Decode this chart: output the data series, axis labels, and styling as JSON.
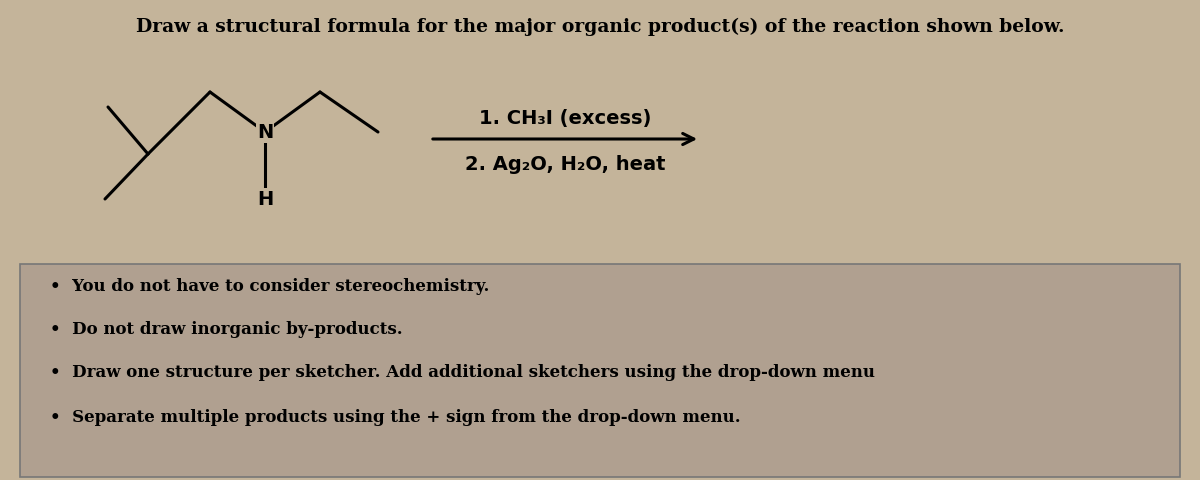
{
  "bg_color": "#c4b49a",
  "title": "Draw a structural formula for the major organic product(s) of the reaction shown below.",
  "title_fontsize": 13.5,
  "reagent_line1": "1. CH₃I (excess)",
  "reagent_line2": "2. Ag₂O, H₂O, heat",
  "reagent_fontsize": 14,
  "bullet_points": [
    "You do not have to consider stereochemistry.",
    "Do not draw inorganic by-products.",
    "Draw one structure per sketcher. Add additional sketchers using the drop-down menu",
    "Separate multiple products using the + sign from the drop-down menu."
  ],
  "bullet_fontsize": 12,
  "box_bg": "#b0a090",
  "structure_color": "#000000",
  "lw": 2.2
}
